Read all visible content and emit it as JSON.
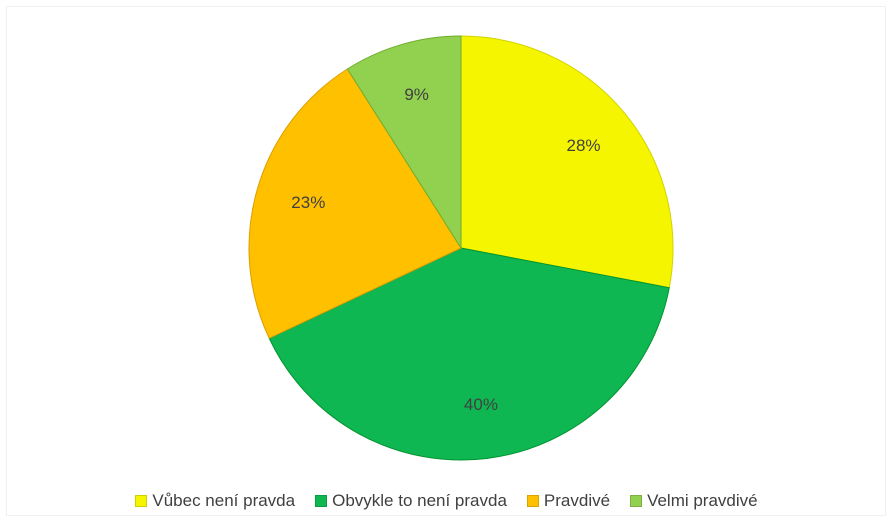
{
  "chart_data": {
    "type": "pie",
    "title": "",
    "slices": [
      {
        "label": "Vůbec není pravda",
        "value": 28,
        "display": "28%",
        "color": "#f5f500"
      },
      {
        "label": "Obvykle to není pravda",
        "value": 40,
        "display": "40%",
        "color": "#0fb752"
      },
      {
        "label": "Pravdivé",
        "value": 23,
        "display": "23%",
        "color": "#ffc000"
      },
      {
        "label": "Velmi pravdivé",
        "value": 9,
        "display": "9%",
        "color": "#92d050"
      }
    ],
    "legend_position": "bottom",
    "start": "top, clockwise"
  }
}
